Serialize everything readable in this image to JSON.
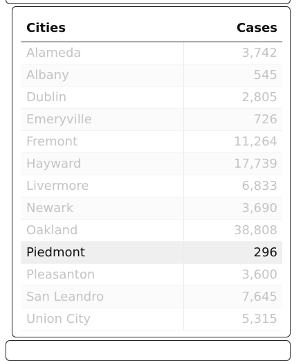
{
  "table": {
    "headers": {
      "city": "Cities",
      "cases": "Cases"
    },
    "rows": [
      {
        "city": "Alameda",
        "cases": "3,742",
        "highlighted": false
      },
      {
        "city": "Albany",
        "cases": "545",
        "highlighted": false
      },
      {
        "city": "Dublin",
        "cases": "2,805",
        "highlighted": false
      },
      {
        "city": "Emeryville",
        "cases": "726",
        "highlighted": false
      },
      {
        "city": "Fremont",
        "cases": "11,264",
        "highlighted": false
      },
      {
        "city": "Hayward",
        "cases": "17,739",
        "highlighted": false
      },
      {
        "city": "Livermore",
        "cases": "6,833",
        "highlighted": false
      },
      {
        "city": "Newark",
        "cases": "3,690",
        "highlighted": false
      },
      {
        "city": "Oakland",
        "cases": "38,808",
        "highlighted": false
      },
      {
        "city": "Piedmont",
        "cases": "296",
        "highlighted": true
      },
      {
        "city": "Pleasanton",
        "cases": "3,600",
        "highlighted": false
      },
      {
        "city": "San Leandro",
        "cases": "7,645",
        "highlighted": false
      },
      {
        "city": "Union City",
        "cases": "5,315",
        "highlighted": false
      }
    ]
  }
}
